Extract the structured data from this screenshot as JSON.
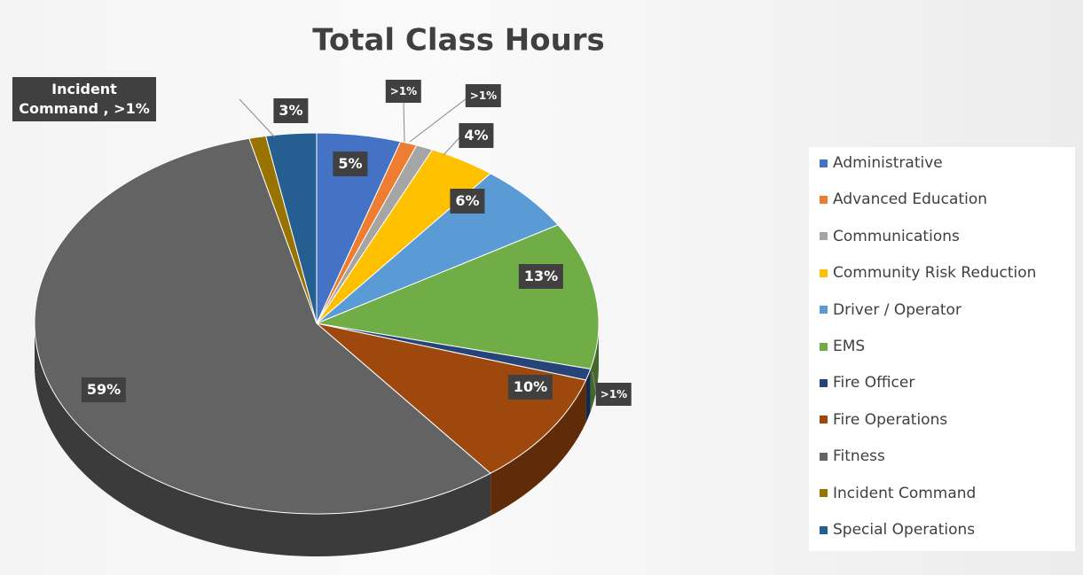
{
  "chart_data": {
    "type": "pie",
    "title": "Total Class Hours",
    "categories": [
      "Administrative",
      "Advanced Education",
      "Communications",
      "Community Risk Reduction",
      "Driver / Operator",
      "EMS",
      "Fire Officer",
      "Fire Operations",
      "Fitness",
      "Incident Command",
      "Special Operations"
    ],
    "values": [
      5,
      1,
      1,
      4,
      6,
      13,
      1,
      10,
      59,
      1,
      3
    ],
    "value_labels": [
      "5%",
      ">1%",
      ">1%",
      "4%",
      "6%",
      "13%",
      ">1%",
      "10%",
      "59%",
      "Incident Command , >1%",
      "3%"
    ],
    "colors": [
      "#4472c4",
      "#ed7d31",
      "#a5a5a5",
      "#ffc000",
      "#5b9bd5",
      "#70ad47",
      "#264478",
      "#9e480e",
      "#636363",
      "#997300",
      "#255e91"
    ],
    "legend": "right"
  }
}
